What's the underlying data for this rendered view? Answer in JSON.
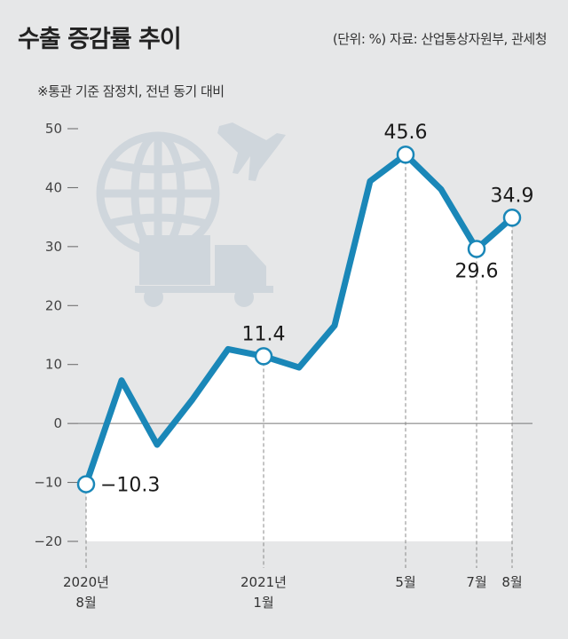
{
  "header": {
    "title": "수출 증감률 추이",
    "source": "(단위: %) 자료: 산업통상자원부, 관세청",
    "note": "※통관 기준 잠정치, 전년 동기 대비"
  },
  "colors": {
    "line": "#1a87b8",
    "background": "#e6e7e8",
    "plot_area": "#ffffff",
    "icons": "#cfd6dc"
  },
  "icons": [
    "globe-icon",
    "airplane-icon",
    "truck-icon"
  ],
  "chart_data": {
    "type": "line",
    "title": "수출 증감률 추이",
    "ylabel": "",
    "xlabel": "",
    "ylim": [
      -20,
      50
    ],
    "yticks": [
      50,
      40,
      30,
      20,
      10,
      0,
      -10,
      -20
    ],
    "x": [
      "2020-08",
      "2020-09",
      "2020-10",
      "2020-11",
      "2020-12",
      "2021-01",
      "2021-02",
      "2021-03",
      "2021-04",
      "2021-05",
      "2021-06",
      "2021-07",
      "2021-08"
    ],
    "values": [
      -10.3,
      7.3,
      -3.6,
      4.1,
      12.6,
      11.4,
      9.5,
      16.6,
      41.1,
      45.6,
      39.7,
      29.6,
      34.9
    ],
    "x_tick_labels": [
      {
        "index": 0,
        "lines": [
          "2020년",
          "8월"
        ]
      },
      {
        "index": 5,
        "lines": [
          "2021년",
          "1월"
        ]
      },
      {
        "index": 9,
        "lines": [
          "5월"
        ]
      },
      {
        "index": 11,
        "lines": [
          "7월"
        ]
      },
      {
        "index": 12,
        "lines": [
          "8월"
        ]
      }
    ],
    "data_labels": [
      {
        "index": 0,
        "text": "−10.3",
        "pos": "right"
      },
      {
        "index": 5,
        "text": "11.4",
        "pos": "above"
      },
      {
        "index": 9,
        "text": "45.6",
        "pos": "above"
      },
      {
        "index": 11,
        "text": "29.6",
        "pos": "below"
      },
      {
        "index": 12,
        "text": "34.9",
        "pos": "above"
      }
    ],
    "grid": false,
    "legend": "none"
  }
}
